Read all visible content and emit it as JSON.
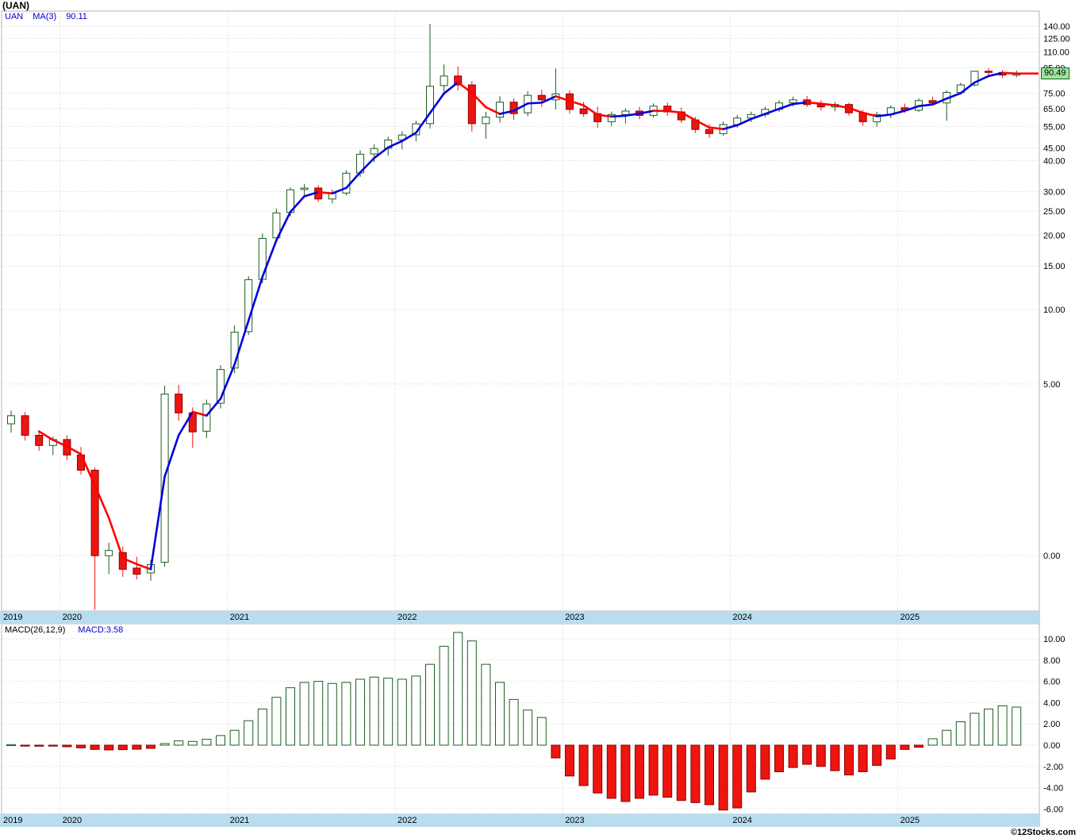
{
  "meta": {
    "title": "(UAN)",
    "watermark": "©12Stocks.com"
  },
  "price_panel": {
    "legend": {
      "symbol": "UAN",
      "ma_label": "MA(3)",
      "ma_value": "90.11"
    },
    "last_price_tag": "90.49",
    "year_labels": [
      "2019",
      "2020",
      "2021",
      "2022",
      "2023",
      "2024",
      "2025"
    ]
  },
  "macd_panel": {
    "legend_label": "MACD(26,12,9)",
    "legend_value": "MACD:3.58"
  },
  "colors": {
    "up": "#1b5e20",
    "down": "#ee1410",
    "down_stroke": "#8e0000",
    "ma_up": "#0000dd",
    "ma_down": "#ff0000",
    "axis_strip": "#b9ddef",
    "price_tag_bg": "#9fe49f"
  },
  "chart_data": [
    {
      "type": "candlestick",
      "symbol": "UAN",
      "interval": "monthly",
      "scale": "log",
      "overlay": {
        "name": "MA(3)",
        "last": 90.11
      },
      "last_price": 90.49,
      "y_ticks": [
        140,
        125,
        110,
        95,
        75,
        65,
        55,
        45,
        40,
        30,
        25,
        20,
        15,
        10,
        5,
        0
      ],
      "x_year_labels": [
        "2019",
        "2020",
        "2021",
        "2022",
        "2023",
        "2024",
        "2025"
      ],
      "months": [
        "2019-09",
        "2019-10",
        "2019-11",
        "2019-12",
        "2020-01",
        "2020-02",
        "2020-03",
        "2020-04",
        "2020-05",
        "2020-06",
        "2020-07",
        "2020-08",
        "2020-09",
        "2020-10",
        "2020-11",
        "2020-12",
        "2021-01",
        "2021-02",
        "2021-03",
        "2021-04",
        "2021-05",
        "2021-06",
        "2021-07",
        "2021-08",
        "2021-09",
        "2021-10",
        "2021-11",
        "2021-12",
        "2022-01",
        "2022-02",
        "2022-03",
        "2022-04",
        "2022-05",
        "2022-06",
        "2022-07",
        "2022-08",
        "2022-09",
        "2022-10",
        "2022-11",
        "2022-12",
        "2023-01",
        "2023-02",
        "2023-03",
        "2023-04",
        "2023-05",
        "2023-06",
        "2023-07",
        "2023-08",
        "2023-09",
        "2023-10",
        "2023-11",
        "2023-12",
        "2024-01",
        "2024-02",
        "2024-03",
        "2024-04",
        "2024-05",
        "2024-06",
        "2024-07",
        "2024-08",
        "2024-09",
        "2024-10",
        "2024-11",
        "2024-12",
        "2025-01",
        "2025-02",
        "2025-03",
        "2025-04",
        "2025-05",
        "2025-06",
        "2025-07",
        "2025-08",
        "2025-09"
      ],
      "ohlc": [
        [
          3.45,
          3.9,
          3.18,
          3.72
        ],
        [
          3.72,
          3.85,
          2.95,
          3.1
        ],
        [
          3.1,
          3.22,
          2.68,
          2.82
        ],
        [
          2.82,
          3.06,
          2.58,
          2.98
        ],
        [
          2.98,
          3.1,
          2.46,
          2.58
        ],
        [
          2.58,
          2.78,
          2.15,
          2.24
        ],
        [
          2.24,
          2.3,
          0.61,
          1.01
        ],
        [
          1.01,
          1.14,
          0.85,
          1.06
        ],
        [
          1.04,
          1.1,
          0.83,
          0.89
        ],
        [
          0.9,
          1.0,
          0.81,
          0.85
        ],
        [
          0.86,
          0.97,
          0.8,
          0.93
        ],
        [
          0.95,
          4.92,
          0.91,
          4.55
        ],
        [
          4.55,
          4.96,
          3.55,
          3.82
        ],
        [
          3.82,
          4.02,
          2.76,
          3.2
        ],
        [
          3.22,
          4.32,
          3.02,
          4.15
        ],
        [
          4.18,
          5.96,
          3.98,
          5.72
        ],
        [
          5.8,
          8.62,
          5.52,
          8.1
        ],
        [
          8.14,
          13.65,
          7.88,
          13.2
        ],
        [
          13.25,
          20.3,
          12.75,
          19.4
        ],
        [
          19.5,
          25.6,
          18.7,
          24.6
        ],
        [
          24.7,
          31.2,
          23.8,
          30.5
        ],
        [
          30.6,
          32.2,
          28.9,
          31.0
        ],
        [
          31.0,
          31.8,
          27.2,
          28.0
        ],
        [
          28.0,
          30.6,
          26.9,
          29.5
        ],
        [
          29.6,
          36.6,
          28.9,
          35.6
        ],
        [
          35.7,
          44.1,
          34.4,
          42.5
        ],
        [
          42.6,
          46.6,
          39.4,
          44.8
        ],
        [
          44.9,
          50.1,
          41.9,
          48.5
        ],
        [
          48.6,
          52.6,
          44.4,
          50.8
        ],
        [
          50.9,
          58.1,
          47.9,
          56.4
        ],
        [
          56.5,
          143.2,
          54.0,
          80.0
        ],
        [
          80.5,
          98.0,
          76.0,
          88.0
        ],
        [
          88.0,
          96.0,
          77.0,
          81.0
        ],
        [
          81.0,
          84.0,
          52.5,
          56.5
        ],
        [
          56.5,
          63.0,
          49.0,
          60.0
        ],
        [
          60.0,
          73.0,
          57.0,
          69.0
        ],
        [
          69.0,
          71.5,
          58.5,
          62.0
        ],
        [
          62.5,
          76.5,
          60.5,
          73.5
        ],
        [
          73.5,
          77.5,
          66.0,
          70.5
        ],
        [
          70.5,
          94.5,
          64.5,
          74.5
        ],
        [
          74.5,
          77.0,
          62.0,
          64.5
        ],
        [
          64.8,
          69.2,
          60.2,
          62.0
        ],
        [
          62.0,
          66.2,
          54.3,
          57.5
        ],
        [
          57.5,
          63.2,
          55.2,
          61.5
        ],
        [
          61.5,
          65.2,
          56.6,
          63.5
        ],
        [
          63.5,
          66.2,
          58.8,
          61.0
        ],
        [
          61.0,
          68.2,
          59.6,
          66.5
        ],
        [
          66.5,
          68.7,
          60.8,
          63.0
        ],
        [
          63.0,
          65.6,
          56.8,
          58.5
        ],
        [
          58.5,
          60.2,
          51.8,
          53.5
        ],
        [
          53.5,
          56.2,
          49.4,
          51.5
        ],
        [
          51.5,
          57.6,
          50.4,
          56.0
        ],
        [
          56.0,
          61.2,
          54.4,
          59.5
        ],
        [
          59.5,
          63.2,
          57.4,
          61.5
        ],
        [
          61.5,
          66.2,
          59.9,
          64.5
        ],
        [
          64.5,
          70.2,
          62.9,
          68.5
        ],
        [
          68.5,
          72.6,
          66.4,
          70.5
        ],
        [
          70.5,
          73.1,
          65.9,
          67.5
        ],
        [
          67.5,
          70.1,
          63.9,
          66.0
        ],
        [
          66.0,
          69.1,
          63.4,
          67.5
        ],
        [
          67.5,
          68.6,
          60.9,
          62.5
        ],
        [
          62.5,
          64.1,
          55.4,
          57.5
        ],
        [
          57.5,
          63.1,
          54.9,
          61.5
        ],
        [
          61.5,
          67.1,
          59.4,
          65.5
        ],
        [
          65.5,
          68.1,
          62.4,
          64.0
        ],
        [
          64.0,
          71.6,
          62.9,
          70.0
        ],
        [
          70.0,
          72.6,
          66.9,
          68.5
        ],
        [
          68.5,
          77.1,
          58.0,
          75.5
        ],
        [
          75.5,
          82.6,
          73.9,
          81.0
        ],
        [
          81.0,
          92.6,
          79.9,
          92.0
        ],
        [
          92.0,
          94.6,
          88.4,
          91.0
        ],
        [
          91.0,
          93.1,
          86.4,
          88.8
        ],
        [
          88.8,
          92.6,
          86.9,
          90.49
        ]
      ]
    },
    {
      "type": "bar",
      "name": "MACD(26,12,9)",
      "last": 3.58,
      "y_ticks": [
        10,
        8,
        6,
        4,
        2,
        0,
        -2,
        -4,
        -6
      ],
      "values": [
        0.05,
        -0.04,
        -0.1,
        -0.08,
        -0.15,
        -0.25,
        -0.4,
        -0.45,
        -0.42,
        -0.38,
        -0.3,
        0.15,
        0.4,
        0.35,
        0.55,
        0.9,
        1.4,
        2.3,
        3.4,
        4.5,
        5.4,
        5.9,
        6.0,
        5.8,
        5.9,
        6.2,
        6.4,
        6.3,
        6.2,
        6.5,
        7.6,
        9.3,
        10.6,
        9.8,
        7.6,
        5.9,
        4.3,
        3.3,
        2.6,
        -1.2,
        -2.9,
        -3.8,
        -4.5,
        -5.0,
        -5.3,
        -5.0,
        -4.7,
        -4.9,
        -5.2,
        -5.4,
        -5.6,
        -6.1,
        -5.9,
        -4.4,
        -3.2,
        -2.5,
        -2.1,
        -1.8,
        -2.0,
        -2.4,
        -2.8,
        -2.5,
        -1.9,
        -1.3,
        -0.4,
        -0.2,
        0.6,
        1.4,
        2.2,
        3.0,
        3.4,
        3.7,
        3.58
      ]
    }
  ]
}
